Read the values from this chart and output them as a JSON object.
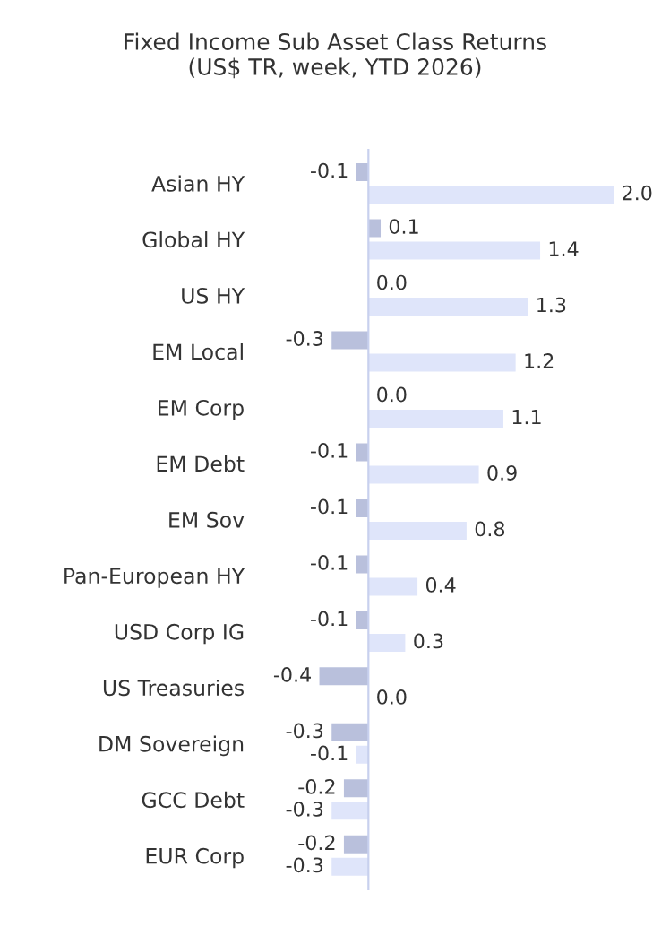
{
  "chart_data": {
    "type": "bar",
    "orientation": "horizontal",
    "title": "Fixed Income Sub Asset Class Returns\n(US$ TR, week, YTD 2026)",
    "categories": [
      "Asian HY",
      "Global HY",
      "US HY",
      "EM Local",
      "EM Corp",
      "EM Debt",
      "EM Sov",
      "Pan-European HY",
      "USD Corp IG",
      "US Treasuries",
      "DM Sovereign",
      "GCC Debt",
      "EUR Corp"
    ],
    "series": [
      {
        "color": "#b9c0dc",
        "values": [
          -0.1,
          0.1,
          0.0,
          -0.3,
          0.0,
          -0.1,
          -0.1,
          -0.1,
          -0.1,
          -0.4,
          -0.3,
          -0.2,
          -0.2
        ],
        "value_labels": [
          "-0.1",
          "0.1",
          "0.0",
          "-0.3",
          "0.0",
          "-0.1",
          "-0.1",
          "-0.1",
          "-0.1",
          "-0.4",
          "-0.3",
          "-0.2",
          "-0.2"
        ]
      },
      {
        "color": "#dfe5fa",
        "values": [
          2.0,
          1.4,
          1.3,
          1.2,
          1.1,
          0.9,
          0.8,
          0.4,
          0.3,
          0.0,
          -0.1,
          -0.3,
          -0.3
        ],
        "value_labels": [
          "2.0",
          "1.4",
          "1.3",
          "1.2",
          "1.1",
          "0.9",
          "0.8",
          "0.4",
          "0.3",
          "0.0",
          "-0.1",
          "-0.3",
          "-0.3"
        ]
      }
    ],
    "grid": false
  }
}
